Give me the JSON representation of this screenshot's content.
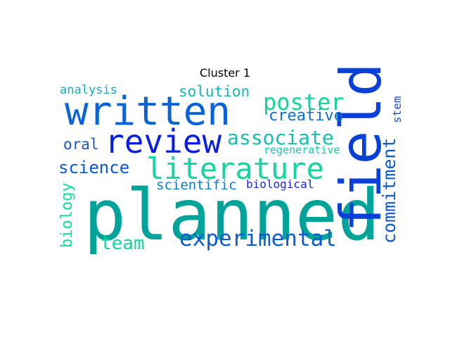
{
  "title": "Cluster 1",
  "words": [
    {
      "text": "planned",
      "color": "#00a39a",
      "orientation": "horizontal"
    },
    {
      "text": "field",
      "color": "#0a3fd8",
      "orientation": "vertical"
    },
    {
      "text": "written",
      "color": "#0a64d8",
      "orientation": "horizontal"
    },
    {
      "text": "review",
      "color": "#0a1fe3",
      "orientation": "horizontal"
    },
    {
      "text": "literature",
      "color": "#12d6a0",
      "orientation": "horizontal"
    },
    {
      "text": "associate",
      "color": "#14bfb0",
      "orientation": "horizontal"
    },
    {
      "text": "poster",
      "color": "#12d699",
      "orientation": "horizontal"
    },
    {
      "text": "creative",
      "color": "#0a6fd0",
      "orientation": "horizontal"
    },
    {
      "text": "solution",
      "color": "#14b8b4",
      "orientation": "horizontal"
    },
    {
      "text": "analysis",
      "color": "#14aebf",
      "orientation": "horizontal"
    },
    {
      "text": "science",
      "color": "#0a59d6",
      "orientation": "horizontal"
    },
    {
      "text": "oral",
      "color": "#1a54c8",
      "orientation": "horizontal"
    },
    {
      "text": "experimental",
      "color": "#0a5bd6",
      "orientation": "horizontal"
    },
    {
      "text": "team",
      "color": "#12d6a0",
      "orientation": "horizontal"
    },
    {
      "text": "biology",
      "color": "#12dd9c",
      "orientation": "vertical"
    },
    {
      "text": "scientific",
      "color": "#0a7ad0",
      "orientation": "horizontal"
    },
    {
      "text": "biological",
      "color": "#1a27d8",
      "orientation": "horizontal"
    },
    {
      "text": "regenerative",
      "color": "#14ccb0",
      "orientation": "horizontal"
    },
    {
      "text": "commitment",
      "color": "#0a5ad6",
      "orientation": "vertical"
    },
    {
      "text": "stem",
      "color": "#1a4ed8",
      "orientation": "vertical"
    }
  ]
}
